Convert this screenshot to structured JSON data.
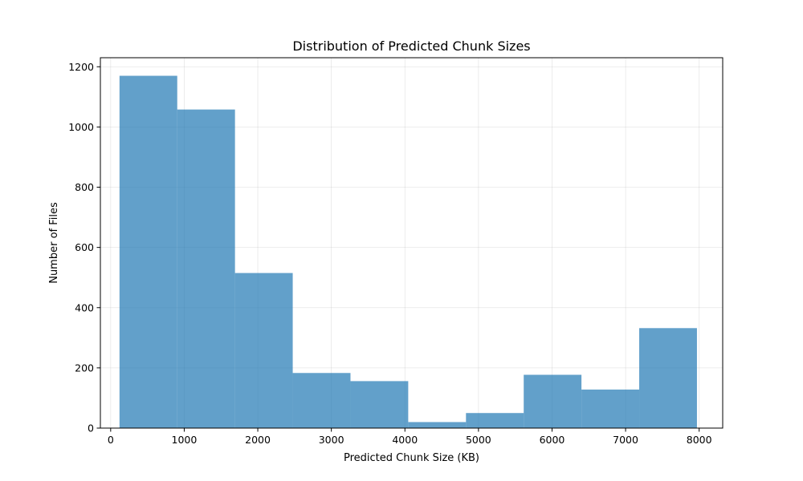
{
  "chart_data": {
    "type": "bar",
    "title": "Distribution of Predicted Chunk Sizes",
    "xlabel": "Predicted Chunk Size (KB)",
    "ylabel": "Number of Files",
    "xlim": [
      -140,
      8320
    ],
    "ylim": [
      0,
      1230
    ],
    "xticks": [
      0,
      1000,
      2000,
      3000,
      4000,
      5000,
      6000,
      7000,
      8000
    ],
    "yticks": [
      0,
      200,
      400,
      600,
      800,
      1000,
      1200
    ],
    "grid": true,
    "color": "#1f77b4",
    "bins": [
      {
        "x0": 120,
        "x1": 905,
        "count": 1170
      },
      {
        "x0": 905,
        "x1": 1690,
        "count": 1058
      },
      {
        "x0": 1690,
        "x1": 2475,
        "count": 515
      },
      {
        "x0": 2475,
        "x1": 3260,
        "count": 183
      },
      {
        "x0": 3260,
        "x1": 4045,
        "count": 156
      },
      {
        "x0": 4045,
        "x1": 4830,
        "count": 20
      },
      {
        "x0": 4830,
        "x1": 5615,
        "count": 50
      },
      {
        "x0": 5615,
        "x1": 6400,
        "count": 177
      },
      {
        "x0": 6400,
        "x1": 7185,
        "count": 128
      },
      {
        "x0": 7185,
        "x1": 7970,
        "count": 332
      }
    ]
  }
}
